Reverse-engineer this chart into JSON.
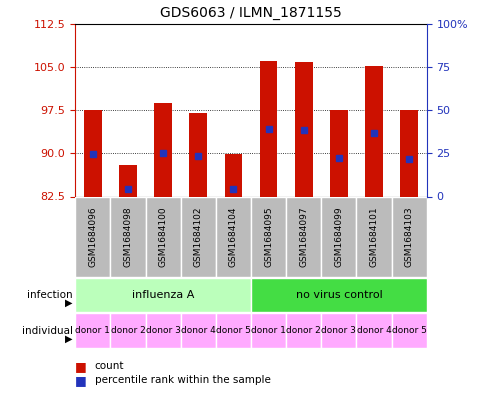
{
  "title": "GDS6063 / ILMN_1871155",
  "samples": [
    "GSM1684096",
    "GSM1684098",
    "GSM1684100",
    "GSM1684102",
    "GSM1684104",
    "GSM1684095",
    "GSM1684097",
    "GSM1684099",
    "GSM1684101",
    "GSM1684103"
  ],
  "bar_tops": [
    97.5,
    88.0,
    98.8,
    97.0,
    89.8,
    106.0,
    105.8,
    97.5,
    105.2,
    97.5
  ],
  "bar_bottoms": [
    82.5,
    82.5,
    82.5,
    82.5,
    82.5,
    82.5,
    82.5,
    82.5,
    82.5,
    82.5
  ],
  "blue_dot_y": [
    89.8,
    83.8,
    90.1,
    89.5,
    83.8,
    94.2,
    94.0,
    89.2,
    93.5,
    89.0
  ],
  "ylim": [
    82.5,
    112.5
  ],
  "yticks_left": [
    82.5,
    90.0,
    97.5,
    105.0,
    112.5
  ],
  "yticks_right_pct": [
    0,
    25,
    50,
    75,
    100
  ],
  "bar_color": "#cc1100",
  "dot_color": "#2233bb",
  "infection_groups": [
    {
      "label": "influenza A",
      "start": 0,
      "end": 5,
      "color": "#bbffbb"
    },
    {
      "label": "no virus control",
      "start": 5,
      "end": 10,
      "color": "#44dd44"
    }
  ],
  "individual_labels": [
    "donor 1",
    "donor 2",
    "donor 3",
    "donor 4",
    "donor 5",
    "donor 1",
    "donor 2",
    "donor 3",
    "donor 4",
    "donor 5"
  ],
  "individual_color": "#ffaaff",
  "left_label_color": "#cc1100",
  "right_label_color": "#2233bb",
  "sample_box_color": "#bbbbbb",
  "bar_width": 0.5
}
